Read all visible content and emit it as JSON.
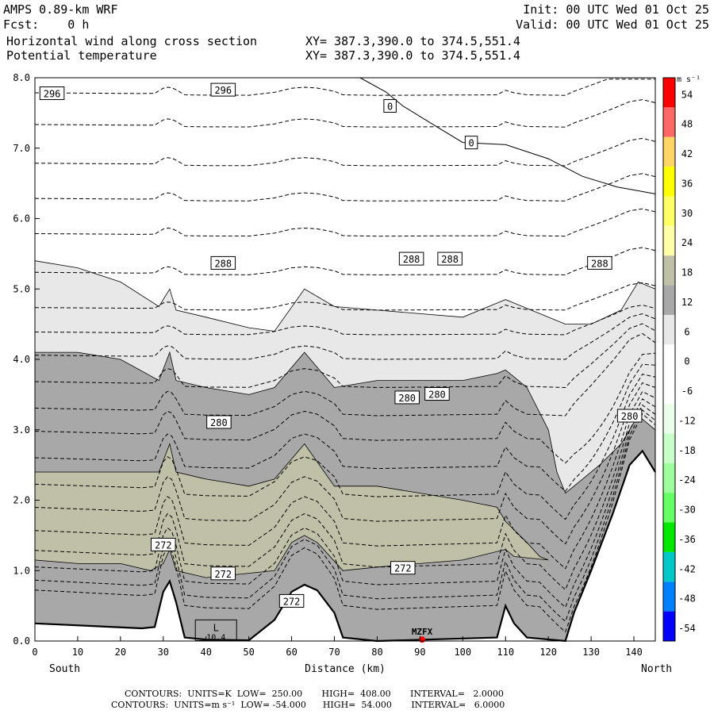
{
  "header": {
    "model": "AMPS 0.89-km WRF",
    "forecast": "Fcst:    0 h",
    "init": "Init: 00 UTC Wed 01 Oct 25",
    "valid": "Valid: 00 UTC Wed 01 Oct 25",
    "field1": "Horizontal wind along cross section",
    "field2": "Potential temperature",
    "xy1": "XY= 387.3,390.0 to 374.5,551.4",
    "xy2": "XY= 387.3,390.0 to 374.5,551.4"
  },
  "footer": {
    "line1": "CONTOURS:  UNITS=K  LOW=  250.00       HIGH=  408.00       INTERVAL=   2.0000",
    "line2": "CONTOURS:  UNITS=m s⁻¹  LOW= -54.000      HIGH=  54.000       INTERVAL=   6.0000"
  },
  "chart_data": {
    "type": "cross-section contour",
    "xlabel": "Distance (km)",
    "x_end_left": "South",
    "x_end_right": "North",
    "xlim": [
      0,
      145
    ],
    "ylim": [
      0,
      8
    ],
    "x_ticks": [
      "0",
      "10",
      "20",
      "30",
      "40",
      "50",
      "60",
      "70",
      "80",
      "90",
      "100",
      "110",
      "120",
      "130",
      "140"
    ],
    "y_ticks": [
      "0.0",
      "1.0",
      "2.0",
      "3.0",
      "4.0",
      "5.0",
      "6.0",
      "7.0",
      "8.0"
    ],
    "station_label": "MZFX",
    "low_marker": {
      "letter": "L",
      "value": "10.4"
    },
    "colorbar": {
      "unit": "m s⁻¹",
      "levels": [
        "54",
        "48",
        "42",
        "36",
        "30",
        "24",
        "18",
        "12",
        "6",
        "0",
        "-6",
        "-12",
        "-18",
        "-24",
        "-30",
        "-36",
        "-42",
        "-48",
        "-54"
      ],
      "colors": [
        "#ff0000",
        "#ff6666",
        "#ffd566",
        "#ffff00",
        "#ffff66",
        "#ffffaa",
        "#c0c0a8",
        "#a8a8a8",
        "#e8e8e8",
        "#ffffff",
        "#ffffff",
        "#ebffeb",
        "#c8ffc8",
        "#9cff9c",
        "#64ff64",
        "#00e800",
        "#00c8c8",
        "#0080ff",
        "#0000ff"
      ]
    },
    "terrain": [
      [
        0,
        0.25
      ],
      [
        25,
        0.18
      ],
      [
        28,
        0.2
      ],
      [
        30,
        0.7
      ],
      [
        31.5,
        0.85
      ],
      [
        33,
        0.55
      ],
      [
        35,
        0.05
      ],
      [
        40,
        0.02
      ],
      [
        50,
        0.01
      ],
      [
        56,
        0.3
      ],
      [
        60,
        0.7
      ],
      [
        63,
        0.8
      ],
      [
        66,
        0.72
      ],
      [
        70,
        0.4
      ],
      [
        72,
        0.05
      ],
      [
        80,
        0.0
      ],
      [
        108,
        0.05
      ],
      [
        110,
        0.5
      ],
      [
        112,
        0.25
      ],
      [
        115,
        0.05
      ],
      [
        124,
        0.0
      ],
      [
        126,
        0.4
      ],
      [
        130,
        1.0
      ],
      [
        135,
        1.8
      ],
      [
        139,
        2.5
      ],
      [
        142,
        2.7
      ],
      [
        145,
        2.4
      ]
    ],
    "wind_fill": [
      {
        "level": "6-12",
        "color": "#e8e8e8",
        "top": [
          [
            0,
            5.4
          ],
          [
            10,
            5.3
          ],
          [
            20,
            5.1
          ],
          [
            29,
            4.75
          ],
          [
            31.5,
            5.0
          ],
          [
            33,
            4.7
          ],
          [
            40,
            4.6
          ],
          [
            50,
            4.45
          ],
          [
            56,
            4.4
          ],
          [
            63,
            5.0
          ],
          [
            70,
            4.75
          ],
          [
            80,
            4.7
          ],
          [
            100,
            4.6
          ],
          [
            110,
            4.85
          ],
          [
            120,
            4.6
          ],
          [
            124,
            4.5
          ],
          [
            130,
            4.5
          ],
          [
            137,
            4.7
          ],
          [
            141,
            5.1
          ],
          [
            145,
            5.0
          ]
        ]
      },
      {
        "level": "12-18",
        "color": "#a8a8a8",
        "top": [
          [
            0,
            4.1
          ],
          [
            10,
            4.1
          ],
          [
            20,
            4.0
          ],
          [
            29,
            3.7
          ],
          [
            31.5,
            4.1
          ],
          [
            33,
            3.7
          ],
          [
            40,
            3.6
          ],
          [
            50,
            3.5
          ],
          [
            56,
            3.6
          ],
          [
            63,
            4.1
          ],
          [
            70,
            3.6
          ],
          [
            80,
            3.7
          ],
          [
            100,
            3.7
          ],
          [
            108,
            3.8
          ],
          [
            110,
            3.85
          ],
          [
            115,
            3.6
          ],
          [
            120,
            3.0
          ],
          [
            122,
            2.4
          ],
          [
            124,
            2.1
          ],
          [
            128,
            2.3
          ],
          [
            132,
            2.5
          ],
          [
            137,
            2.8
          ],
          [
            141,
            3.2
          ],
          [
            145,
            3.0
          ]
        ]
      },
      {
        "level": "18-24",
        "color": "#c0c0a8",
        "top": [
          [
            0,
            2.4
          ],
          [
            20,
            2.4
          ],
          [
            29,
            2.4
          ],
          [
            31.5,
            2.8
          ],
          [
            33,
            2.4
          ],
          [
            40,
            2.3
          ],
          [
            50,
            2.2
          ],
          [
            56,
            2.3
          ],
          [
            63,
            2.8
          ],
          [
            70,
            2.2
          ],
          [
            80,
            2.2
          ],
          [
            100,
            2.0
          ],
          [
            108,
            1.9
          ],
          [
            110,
            1.7
          ],
          [
            115,
            1.4
          ],
          [
            118,
            1.2
          ],
          [
            120,
            1.15
          ]
        ],
        "bottom": [
          [
            120,
            1.15
          ],
          [
            112,
            1.2
          ],
          [
            110,
            1.3
          ],
          [
            100,
            1.15
          ],
          [
            80,
            1.05
          ],
          [
            72,
            1.0
          ],
          [
            66,
            1.4
          ],
          [
            63,
            1.5
          ],
          [
            60,
            1.4
          ],
          [
            56,
            1.0
          ],
          [
            40,
            0.9
          ],
          [
            33,
            1.0
          ],
          [
            31.5,
            1.3
          ],
          [
            30,
            1.1
          ],
          [
            27,
            1.0
          ],
          [
            20,
            1.1
          ],
          [
            10,
            1.1
          ],
          [
            0,
            1.15
          ]
        ]
      }
    ],
    "theta_labels": [
      "296",
      "296",
      "0",
      "0",
      "288",
      "288",
      "288",
      "288",
      "280",
      "280",
      "280",
      "280",
      "272",
      "272",
      "272",
      "272"
    ]
  }
}
